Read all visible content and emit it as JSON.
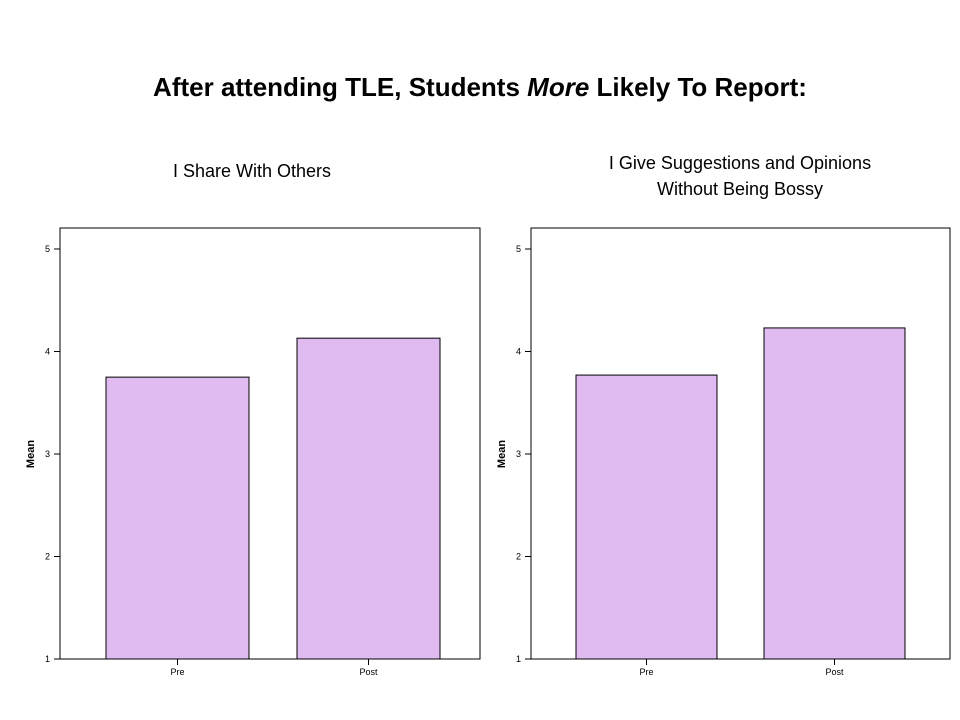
{
  "header": {
    "title_part1": "After attending TLE, Students ",
    "title_emphasis": "More",
    "title_part2": " Likely To Report:"
  },
  "chart_data": [
    {
      "type": "bar",
      "title": "I Share With Others",
      "categories": [
        "Pre",
        "Post"
      ],
      "values": [
        3.75,
        4.13
      ],
      "ylabel": "Mean",
      "xlabel": "",
      "ylim": [
        1,
        5
      ],
      "yticks": [
        1,
        2,
        3,
        4,
        5
      ],
      "bar_color": "#dfbbf1",
      "grid": false
    },
    {
      "type": "bar",
      "title_line1": "I Give Suggestions and Opinions",
      "title_line2": "Without Being Bossy",
      "categories": [
        "Pre",
        "Post"
      ],
      "values": [
        3.77,
        4.23
      ],
      "ylabel": "Mean",
      "xlabel": "",
      "ylim": [
        1,
        5
      ],
      "yticks": [
        1,
        2,
        3,
        4,
        5
      ],
      "bar_color": "#dfbbf1",
      "grid": false
    }
  ]
}
